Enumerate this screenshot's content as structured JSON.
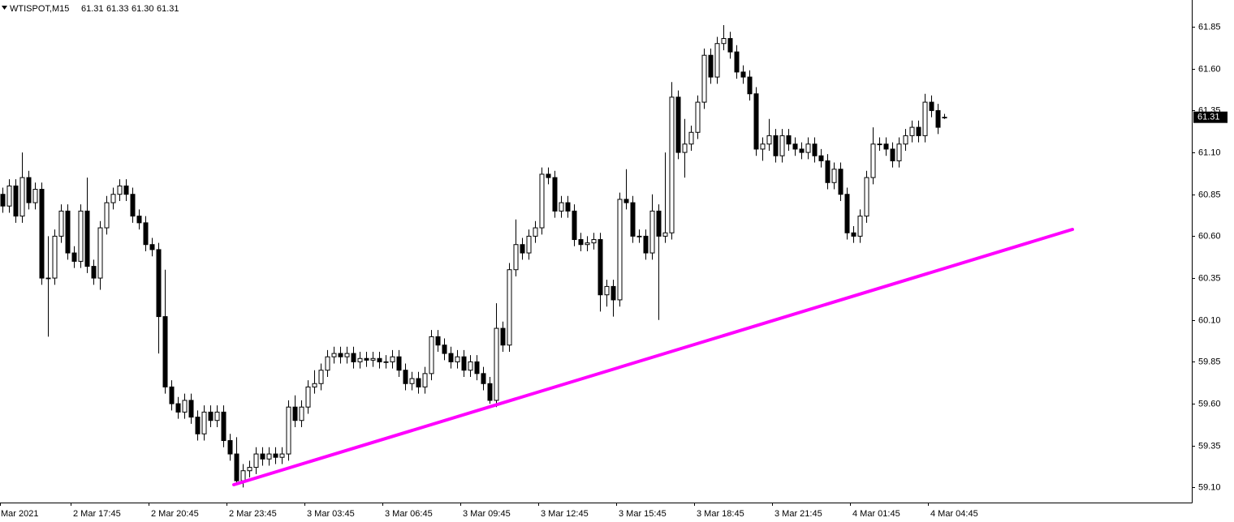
{
  "chart_data": {
    "type": "candlestick",
    "title": "WTISPOT,M15",
    "header_values": [
      "61.31",
      "61.33",
      "61.30",
      "61.31"
    ],
    "price_label": "61.31",
    "x_labels": [
      "Mar 2021",
      "2 Mar 17:45",
      "2 Mar 20:45",
      "2 Mar 23:45",
      "3 Mar 03:45",
      "3 Mar 06:45",
      "3 Mar 09:45",
      "3 Mar 12:45",
      "3 Mar 15:45",
      "3 Mar 18:45",
      "3 Mar 21:45",
      "4 Mar 01:45",
      "4 Mar 04:45"
    ],
    "ylim": [
      59.01,
      62.01
    ],
    "yticks": [
      {
        "value": 59.1,
        "label": "59.10"
      },
      59.35,
      {
        "value": 59.6,
        "label": "59.60"
      },
      59.85,
      {
        "value": 60.1,
        "label": "60.10"
      },
      60.35,
      {
        "value": 60.6,
        "label": "60.60"
      },
      60.85,
      {
        "value": 61.1,
        "label": "61.10"
      },
      61.35,
      {
        "value": 61.6,
        "label": "61.60"
      },
      61.85
    ],
    "open": [
      60.85,
      60.78,
      60.9,
      60.72,
      60.95,
      60.8,
      60.88,
      60.35,
      60.35,
      60.6,
      60.75,
      60.5,
      60.45,
      60.75,
      60.42,
      60.35,
      60.65,
      60.8,
      60.85,
      60.9,
      60.85,
      60.72,
      60.68,
      60.55,
      60.52,
      60.12,
      59.7,
      59.6,
      59.55,
      59.62,
      59.52,
      59.42,
      59.55,
      59.5,
      59.55,
      59.38,
      59.3,
      59.14,
      59.2,
      59.22,
      59.3,
      59.27,
      59.3,
      59.28,
      59.3,
      59.58,
      59.5,
      59.58,
      59.7,
      59.72,
      59.8,
      59.88,
      59.9,
      59.88,
      59.9,
      59.85,
      59.87,
      59.86,
      59.87,
      59.85,
      59.85,
      59.88,
      59.8,
      59.72,
      59.75,
      59.7,
      59.78,
      60.0,
      59.95,
      59.9,
      59.85,
      59.88,
      59.8,
      59.85,
      59.78,
      59.72,
      59.62,
      60.05,
      59.95,
      60.4,
      60.55,
      60.5,
      60.6,
      60.65,
      60.97,
      60.95,
      60.75,
      60.8,
      60.75,
      60.58,
      60.55,
      60.56,
      60.58,
      60.25,
      60.3,
      60.22,
      60.82,
      60.8,
      60.6,
      60.6,
      60.5,
      60.75,
      60.6,
      60.62,
      61.43,
      61.1,
      61.15,
      61.22,
      61.4,
      61.68,
      61.55,
      61.75,
      61.78,
      61.7,
      61.58,
      61.55,
      61.45,
      61.12,
      61.15,
      61.2,
      61.08,
      61.2,
      61.15,
      61.12,
      61.1,
      61.15,
      61.08,
      61.05,
      60.92,
      61.0,
      60.85,
      60.62,
      60.6,
      60.72,
      60.95,
      61.15,
      61.15,
      61.12,
      61.05,
      61.15,
      61.2,
      61.25,
      61.2,
      61.4,
      61.35,
      61.31
    ],
    "high": [
      60.89,
      60.94,
      60.94,
      61.1,
      60.99,
      60.92,
      60.92,
      60.6,
      60.64,
      60.79,
      60.79,
      60.54,
      60.79,
      60.95,
      60.46,
      60.69,
      60.84,
      60.89,
      60.94,
      60.94,
      60.89,
      60.76,
      60.72,
      60.59,
      60.56,
      60.4,
      59.74,
      59.64,
      59.66,
      59.66,
      59.56,
      59.59,
      59.59,
      59.59,
      59.59,
      59.42,
      59.4,
      59.24,
      59.26,
      59.34,
      59.34,
      59.34,
      59.34,
      59.34,
      59.62,
      59.65,
      59.62,
      59.74,
      59.8,
      59.84,
      59.92,
      59.94,
      59.94,
      59.94,
      59.94,
      59.91,
      59.91,
      59.91,
      59.91,
      59.89,
      59.92,
      59.92,
      59.84,
      59.79,
      59.79,
      59.82,
      60.04,
      60.04,
      59.99,
      59.94,
      59.92,
      59.92,
      59.89,
      59.89,
      59.82,
      59.76,
      60.2,
      60.09,
      60.44,
      60.7,
      60.59,
      60.64,
      60.69,
      61.01,
      61.01,
      60.99,
      60.84,
      60.84,
      60.79,
      60.62,
      60.6,
      60.62,
      60.62,
      60.34,
      60.34,
      60.86,
      61.0,
      60.84,
      60.64,
      60.64,
      60.85,
      60.79,
      61.1,
      61.52,
      61.47,
      61.3,
      61.26,
      61.44,
      61.72,
      61.72,
      61.79,
      61.86,
      61.82,
      61.74,
      61.62,
      61.59,
      61.49,
      61.19,
      61.3,
      61.24,
      61.24,
      61.24,
      61.19,
      61.16,
      61.19,
      61.19,
      61.12,
      61.09,
      61.04,
      61.04,
      60.89,
      60.66,
      60.76,
      60.99,
      61.25,
      61.19,
      61.19,
      61.16,
      61.19,
      61.24,
      61.29,
      61.29,
      61.45,
      61.44,
      61.39,
      61.33
    ],
    "low": [
      60.74,
      60.74,
      60.68,
      60.68,
      60.76,
      60.76,
      60.31,
      60.0,
      60.31,
      60.56,
      60.46,
      60.41,
      60.41,
      60.38,
      60.31,
      60.28,
      60.61,
      60.76,
      60.81,
      60.81,
      60.68,
      60.64,
      60.51,
      60.48,
      59.9,
      59.66,
      59.56,
      59.51,
      59.51,
      59.48,
      59.38,
      59.38,
      59.46,
      59.46,
      59.34,
      59.26,
      59.12,
      59.1,
      59.16,
      59.18,
      59.23,
      59.23,
      59.24,
      59.24,
      59.26,
      59.46,
      59.46,
      59.54,
      59.66,
      59.68,
      59.76,
      59.84,
      59.84,
      59.84,
      59.81,
      59.81,
      59.82,
      59.82,
      59.81,
      59.81,
      59.81,
      59.76,
      59.68,
      59.68,
      59.66,
      59.66,
      59.74,
      59.91,
      59.86,
      59.81,
      59.81,
      59.76,
      59.76,
      59.74,
      59.68,
      59.6,
      59.58,
      59.91,
      59.91,
      60.36,
      60.46,
      60.46,
      60.56,
      60.61,
      60.91,
      60.71,
      60.71,
      60.71,
      60.54,
      60.51,
      60.51,
      60.52,
      60.15,
      60.18,
      60.12,
      60.18,
      60.76,
      60.56,
      60.56,
      60.46,
      60.46,
      60.1,
      60.56,
      60.58,
      61.06,
      60.95,
      61.11,
      61.18,
      61.36,
      61.51,
      61.51,
      61.71,
      61.66,
      61.54,
      61.51,
      61.41,
      61.08,
      61.05,
      61.11,
      61.04,
      61.04,
      61.11,
      61.08,
      61.06,
      61.06,
      61.04,
      61.01,
      60.88,
      60.88,
      60.81,
      60.58,
      60.56,
      60.56,
      60.68,
      60.91,
      61.11,
      61.08,
      61.01,
      61.01,
      61.11,
      61.16,
      61.16,
      61.16,
      61.31,
      61.21,
      61.3
    ],
    "close": [
      60.78,
      60.9,
      60.72,
      60.95,
      60.8,
      60.88,
      60.35,
      60.35,
      60.6,
      60.75,
      60.5,
      60.45,
      60.75,
      60.42,
      60.35,
      60.65,
      60.8,
      60.85,
      60.9,
      60.85,
      60.72,
      60.68,
      60.55,
      60.52,
      60.12,
      59.7,
      59.6,
      59.55,
      59.62,
      59.52,
      59.42,
      59.55,
      59.5,
      59.55,
      59.38,
      59.3,
      59.14,
      59.2,
      59.22,
      59.3,
      59.27,
      59.3,
      59.28,
      59.3,
      59.58,
      59.5,
      59.58,
      59.7,
      59.72,
      59.8,
      59.88,
      59.9,
      59.88,
      59.9,
      59.85,
      59.87,
      59.86,
      59.87,
      59.85,
      59.85,
      59.88,
      59.8,
      59.72,
      59.75,
      59.7,
      59.78,
      60.0,
      59.95,
      59.9,
      59.85,
      59.88,
      59.8,
      59.85,
      59.78,
      59.72,
      59.62,
      60.05,
      59.95,
      60.4,
      60.55,
      60.5,
      60.6,
      60.65,
      60.97,
      60.95,
      60.75,
      60.8,
      60.75,
      60.58,
      60.55,
      60.56,
      60.58,
      60.25,
      60.3,
      60.22,
      60.82,
      60.8,
      60.6,
      60.6,
      60.5,
      60.75,
      60.6,
      60.62,
      61.43,
      61.1,
      61.15,
      61.22,
      61.4,
      61.68,
      61.55,
      61.75,
      61.78,
      61.7,
      61.58,
      61.55,
      61.45,
      61.12,
      61.15,
      61.2,
      61.08,
      61.2,
      61.15,
      61.12,
      61.1,
      61.15,
      61.08,
      61.05,
      60.92,
      61.0,
      60.85,
      60.62,
      60.6,
      60.72,
      60.95,
      61.15,
      61.15,
      61.12,
      61.05,
      61.15,
      61.2,
      61.25,
      61.2,
      61.4,
      61.35,
      61.25,
      61.31
    ],
    "grid": false
  }
}
